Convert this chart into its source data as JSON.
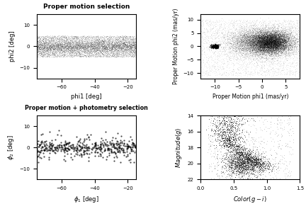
{
  "panel1": {
    "title": "Proper motion selection",
    "xlabel": "phi1 [deg]",
    "ylabel": "phi2 [deg]",
    "xlim": [
      -75,
      -15
    ],
    "ylim": [
      -15,
      15
    ],
    "xticks": [
      -60,
      -40,
      -20
    ],
    "yticks": [
      -10,
      0,
      10
    ]
  },
  "panel2": {
    "title": "",
    "xlabel": "Proper Motion phi1 (mas/yr)",
    "ylabel": "Proper Motion phi2 (mas/yr)",
    "xlim": [
      -13,
      8
    ],
    "ylim": [
      -12,
      12
    ],
    "xticks": [
      -10,
      -5,
      0,
      5
    ],
    "yticks": [
      -10,
      -5,
      0,
      5,
      10
    ]
  },
  "panel3": {
    "title": "Proper motion + photometry selection",
    "xlabel": "$\\phi_1$ [deg]",
    "ylabel": "$\\phi_2$ [deg]",
    "xlim": [
      -75,
      -15
    ],
    "ylim": [
      -15,
      15
    ],
    "xticks": [
      -60,
      -40,
      -20
    ],
    "yticks": [
      -10,
      0,
      10
    ]
  },
  "panel4": {
    "title": "",
    "xlabel": "$Color(g-i)$",
    "ylabel": "$Magnitude(g)$",
    "xlim": [
      0.0,
      1.5
    ],
    "ylim": [
      14,
      22
    ],
    "xticks": [
      0.0,
      0.5,
      1.0,
      1.5
    ],
    "yticks": [
      14,
      16,
      18,
      20,
      22
    ]
  },
  "seed": 42,
  "marker_color": "black"
}
